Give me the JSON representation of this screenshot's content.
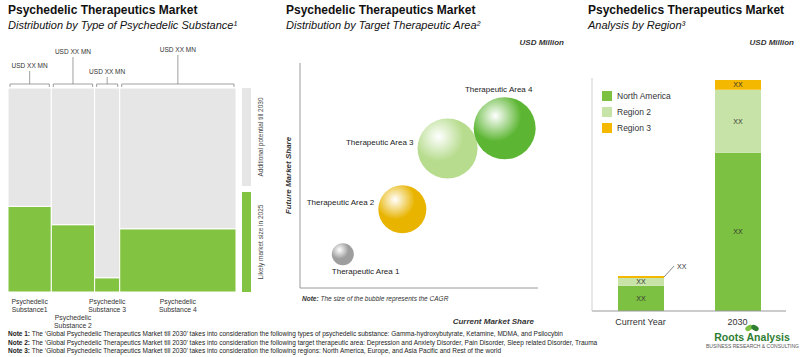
{
  "chart_data": [
    {
      "type": "marimekko",
      "title": "Psychedelic Therapeutics Market",
      "subtitle": "Distribution by Type of Psychedelic Substance¹",
      "categories": [
        "Psychedelic Substance1",
        "Psychedelic Substance 2",
        "Psychedelic Substance 3",
        "Psychedelic Substance 4"
      ],
      "widths": [
        19,
        19,
        11,
        51
      ],
      "series": [
        {
          "name": "Likely market size in 2025",
          "color": "#82c341",
          "values": [
            42,
            33,
            7,
            31
          ]
        },
        {
          "name": "Additional potential till 2030",
          "color": "#e6e6e6",
          "values": [
            58,
            67,
            93,
            69
          ]
        }
      ],
      "annotations": [
        "USD XX  MN",
        "USD XX MN",
        "USD XX MN",
        "USD XX MN"
      ],
      "xlim": [
        0,
        100
      ],
      "ylim": [
        0,
        100
      ],
      "stacked": true,
      "tick_labels": "x"
    },
    {
      "type": "bubble",
      "title": "Psychedelic Therapeutics Market",
      "subtitle": "Distribution by Target Therapeutic Area²",
      "unit_label": "USD Million",
      "x_label": "Current Market Share",
      "y_label": "Future Market Share",
      "note": {
        "label": "Note:",
        "text": "The size of the bubble represents the CAGR"
      },
      "categories": [
        "Therapeutic Area 1",
        "Therapeutic Area 2",
        "Therapeutic Area 3",
        "Therapeutic Area 4"
      ],
      "x": [
        18,
        43,
        62,
        86
      ],
      "values": [
        15,
        35,
        62,
        71
      ],
      "sizes": [
        11,
        24,
        30,
        31
      ],
      "colors": [
        "#9e9e9e",
        "#e8b400",
        "#b7dc8e",
        "#5db633"
      ],
      "xlim": [
        0,
        100
      ],
      "ylim": [
        0,
        100
      ],
      "tick_labels": false
    },
    {
      "type": "bar",
      "title": "Psychedelics Therapeutics Market",
      "subtitle": "Analysis by Region³",
      "unit_label": "USD Million",
      "categories": [
        "Current Year",
        "2030"
      ],
      "series": [
        {
          "name": "North America",
          "color": "#7dc142",
          "values": [
            26,
            163
          ],
          "value_labels": [
            "XX",
            "XX"
          ]
        },
        {
          "name": "Region 2",
          "color": "#c8e3a8",
          "values": [
            8,
            65
          ],
          "value_labels": [
            "XX",
            "XX"
          ]
        },
        {
          "name": "Region 3",
          "color": "#f5b800",
          "values": [
            2,
            10
          ],
          "value_labels": [
            "XX",
            "XX"
          ]
        }
      ],
      "ylim": [
        0,
        240
      ],
      "stacked": true,
      "tick_labels": "x"
    }
  ],
  "notes": [
    {
      "label": "Note 1:",
      "text": "The ‘Global Psychedelic Therapeutics Market till 2030’ takes into consideration the following types of psychedelic substance: Gamma-hydroxybutyrate, Ketamine, MDMA, and Psilocybin"
    },
    {
      "label": "Note 2:",
      "text": "The ‘Global Psychedelic Therapeutics Market till 2030’ takes into consideration the following target therapeutic area: Depression and Anxiety Disorder, Pain Disorder, Sleep related Disorder, Trauma"
    },
    {
      "label": "Note 3:",
      "text": "The ‘Global Psychedelic Therapeutics Market till 2030’ takes into consideration the following regions: North America, Europe, and Asia Pacific and Rest of the world"
    }
  ],
  "logo": {
    "name": "Roots Analysis",
    "tagline": "BUSINESS RESEARCH & CONSULTING"
  }
}
